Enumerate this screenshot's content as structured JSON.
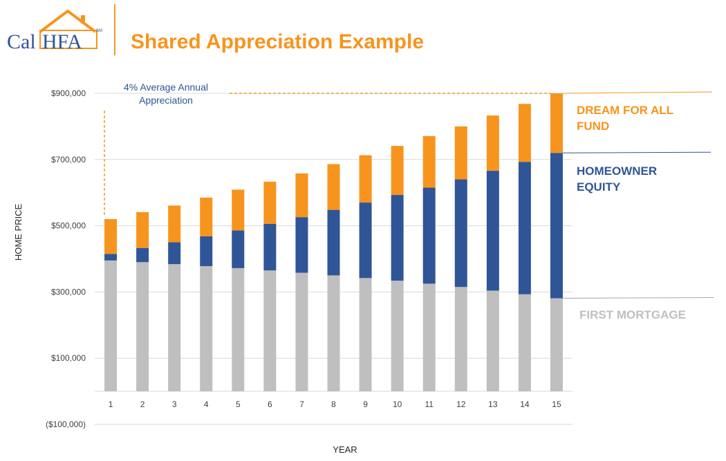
{
  "header": {
    "logo_cal": "Cal",
    "logo_hfa": "HFA",
    "logo_mark": "SM",
    "title": "Shared Appreciation Example"
  },
  "colors": {
    "mortgage": "#bfbfbf",
    "equity": "#2f5597",
    "fund": "#f7941d",
    "axis_text": "#404040",
    "annotation": "#2f5496"
  },
  "chart_data": {
    "type": "bar",
    "stacked": true,
    "categories": [
      "1",
      "2",
      "3",
      "4",
      "5",
      "6",
      "7",
      "8",
      "9",
      "10",
      "11",
      "12",
      "13",
      "14",
      "15"
    ],
    "series": [
      {
        "name": "FIRST MORTGAGE",
        "values": [
          395000,
          390000,
          384000,
          378000,
          372000,
          365000,
          358000,
          350000,
          342000,
          334000,
          325000,
          315000,
          304000,
          293000,
          281000
        ]
      },
      {
        "name": "HOMEOWNER EQUITY",
        "values": [
          20000,
          43000,
          66000,
          90000,
          114000,
          141000,
          168000,
          198000,
          228000,
          259000,
          290000,
          325000,
          362000,
          400000,
          439000
        ]
      },
      {
        "name": "DREAM FOR ALL FUND",
        "values": [
          105000,
          108000,
          111000,
          117000,
          123000,
          127000,
          132000,
          138000,
          143000,
          148000,
          156000,
          160000,
          167000,
          175000,
          180000
        ]
      }
    ],
    "yticks": [
      -100000,
      100000,
      300000,
      500000,
      700000,
      900000
    ],
    "ytick_labels": [
      "($100,000)",
      "$100,000",
      "$300,000",
      "$500,000",
      "$700,000",
      "$900,000"
    ],
    "ylim": [
      -100000,
      900000
    ],
    "xlabel": "YEAR",
    "ylabel": "HOME PRICE",
    "annotation": [
      "4% Average Annual",
      "Appreciation"
    ],
    "grid": true
  }
}
